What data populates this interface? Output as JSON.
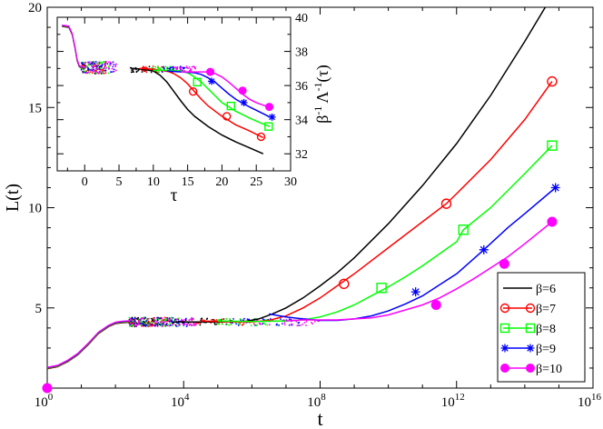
{
  "chart_data": [
    {
      "type": "line",
      "title": "",
      "xlabel": "t",
      "ylabel": "L(t)",
      "xscale": "log10",
      "xlim": [
        1,
        1e+16
      ],
      "ylim": [
        1,
        20
      ],
      "x_tick_labels": [
        {
          "base": "10",
          "exp": "0"
        },
        {
          "base": "10",
          "exp": "4"
        },
        {
          "base": "10",
          "exp": "8"
        },
        {
          "base": "10",
          "exp": "12"
        },
        {
          "base": "10",
          "exp": "16"
        }
      ],
      "y_tick_labels": [
        "5",
        "10",
        "15",
        "20"
      ],
      "legend_position": "bottom-right",
      "series": [
        {
          "name": "β=6",
          "color": "#000000",
          "marker": "none",
          "x_log10": [
            3.7,
            5.0,
            5.8,
            6.2,
            6.6,
            7.0,
            7.5,
            8.0,
            8.5,
            9.0,
            10.0,
            11.0,
            12.0,
            13.0,
            14.0,
            14.6
          ],
          "y": [
            4.3,
            4.3,
            4.33,
            4.45,
            4.7,
            5.0,
            5.5,
            6.1,
            6.75,
            7.5,
            9.2,
            11.1,
            13.2,
            15.6,
            18.3,
            20.0
          ]
        },
        {
          "name": "β=7",
          "color": "#ff0000",
          "marker": "circle-open",
          "x_log10": [
            4.5,
            5.0,
            6.0,
            6.5,
            7.0,
            7.5,
            8.0,
            8.5,
            9.0,
            10.0,
            11.0,
            11.7,
            12.0,
            13.0,
            14.0,
            14.8
          ],
          "y": [
            4.35,
            4.32,
            4.3,
            4.38,
            4.6,
            5.0,
            5.5,
            6.1,
            6.7,
            8.0,
            9.3,
            10.2,
            10.7,
            12.4,
            14.4,
            16.3
          ],
          "marker_x_log10": [
            8.7,
            11.7,
            14.8
          ],
          "marker_y": [
            6.2,
            10.2,
            16.3
          ]
        },
        {
          "name": "β=8",
          "color": "#00ff00",
          "marker": "square-open",
          "x_log10": [
            5.0,
            6.0,
            7.0,
            7.5,
            8.0,
            8.5,
            9.0,
            9.5,
            10.0,
            10.5,
            11.0,
            12.0,
            12.2,
            13.0,
            14.0,
            14.8
          ],
          "y": [
            4.35,
            4.32,
            4.35,
            4.4,
            4.55,
            4.8,
            5.15,
            5.6,
            6.05,
            6.55,
            7.1,
            8.3,
            8.9,
            10.0,
            11.7,
            13.1
          ],
          "marker_x_log10": [
            9.8,
            12.2,
            14.8
          ],
          "marker_y": [
            6.0,
            8.9,
            13.1
          ]
        },
        {
          "name": "β=9",
          "color": "#0000ff",
          "marker": "asterisk",
          "x_log10": [
            6.5,
            7.0,
            7.5,
            8.0,
            8.5,
            9.0,
            9.5,
            10.0,
            10.5,
            11.0,
            11.5,
            12.0,
            12.8,
            13.5,
            14.0,
            14.9
          ],
          "y": [
            4.7,
            4.55,
            4.45,
            4.38,
            4.38,
            4.45,
            4.6,
            4.85,
            5.2,
            5.6,
            6.15,
            6.7,
            7.9,
            9.0,
            9.7,
            11.0
          ],
          "marker_x_log10": [
            10.8,
            12.8,
            14.9
          ],
          "marker_y": [
            5.8,
            7.9,
            11.0
          ]
        },
        {
          "name": "β=10",
          "color": "#ff00ff",
          "marker": "circle-filled",
          "x_log10": [
            7.0,
            7.5,
            8.0,
            8.5,
            9.0,
            9.5,
            10.0,
            10.5,
            11.0,
            11.5,
            12.0,
            12.5,
            13.0,
            13.5,
            14.0,
            14.8
          ],
          "y": [
            4.35,
            4.4,
            4.4,
            4.4,
            4.45,
            4.5,
            4.65,
            4.9,
            5.15,
            5.5,
            5.95,
            6.45,
            7.0,
            7.55,
            8.2,
            9.3
          ],
          "marker_x_log10": [
            0,
            11.4,
            13.4,
            14.8
          ],
          "marker_y": [
            1.0,
            5.15,
            7.2,
            9.3
          ]
        }
      ]
    },
    {
      "type": "line",
      "title": "",
      "xlabel": "τ",
      "ylabel_main": "β",
      "ylabel_sup1": "-1",
      "ylabel_mid": "Λ",
      "ylabel_sup2": "-1",
      "ylabel_tail": "(τ)",
      "ylabel": "β^-1 Λ^-1(τ)",
      "xlim": [
        -4,
        30
      ],
      "ylim": [
        31,
        40
      ],
      "x_tick_labels": [
        "0",
        "5",
        "10",
        "15",
        "20",
        "25",
        "30"
      ],
      "y_tick_labels": [
        "32",
        "34",
        "36",
        "38",
        "40"
      ],
      "axis_side": "right",
      "series": [
        {
          "name": "β=6",
          "color": "#000000",
          "marker": "none",
          "x": [
            7,
            8.5,
            10,
            11,
            12,
            13,
            14,
            15,
            16,
            18,
            20,
            22,
            24,
            26
          ],
          "y": [
            37.0,
            36.95,
            36.85,
            36.6,
            36.2,
            35.65,
            35.1,
            34.6,
            34.2,
            33.6,
            33.1,
            32.7,
            32.35,
            32.0
          ]
        },
        {
          "name": "β=7",
          "color": "#ff0000",
          "marker": "circle-open",
          "x": [
            8,
            10,
            12,
            13,
            14,
            15,
            16,
            17,
            18,
            19,
            20,
            22,
            24,
            26
          ],
          "y": [
            37.0,
            36.95,
            36.85,
            36.7,
            36.45,
            36.1,
            35.65,
            35.2,
            34.8,
            34.5,
            34.2,
            33.7,
            33.35,
            32.95
          ],
          "marker_x": [
            15.8,
            20.7,
            25.7
          ],
          "marker_y": [
            35.65,
            34.2,
            33.0
          ]
        },
        {
          "name": "β=8",
          "color": "#00ff00",
          "marker": "square-open",
          "x": [
            10,
            12,
            14,
            15,
            16,
            17,
            18,
            19,
            20,
            22,
            24,
            26,
            27
          ],
          "y": [
            36.9,
            36.9,
            36.85,
            36.75,
            36.5,
            36.2,
            35.8,
            35.4,
            35.0,
            34.5,
            34.1,
            33.75,
            33.6
          ],
          "marker_x": [
            16.4,
            21.3,
            26.8
          ],
          "marker_y": [
            36.2,
            34.8,
            33.6
          ]
        },
        {
          "name": "β=9",
          "color": "#0000ff",
          "marker": "asterisk",
          "x": [
            12,
            14,
            16,
            17,
            18,
            19,
            20,
            21,
            22,
            24,
            26,
            27
          ],
          "y": [
            36.85,
            36.8,
            36.75,
            36.65,
            36.45,
            36.2,
            35.85,
            35.5,
            35.2,
            34.75,
            34.35,
            34.15
          ],
          "marker_x": [
            18.5,
            23.2,
            27.3
          ],
          "marker_y": [
            36.25,
            35.0,
            34.15
          ]
        },
        {
          "name": "β=10",
          "color": "#ff00ff",
          "marker": "circle-filled",
          "x": [
            14,
            16,
            18,
            19,
            20,
            21,
            22,
            23,
            24,
            25,
            26,
            27
          ],
          "y": [
            36.8,
            36.8,
            36.8,
            36.7,
            36.5,
            36.2,
            35.85,
            35.5,
            35.2,
            35.0,
            34.85,
            34.7
          ],
          "marker_x": [
            18.3,
            23.0,
            26.9
          ],
          "marker_y": [
            36.8,
            35.7,
            34.75
          ]
        }
      ]
    }
  ]
}
